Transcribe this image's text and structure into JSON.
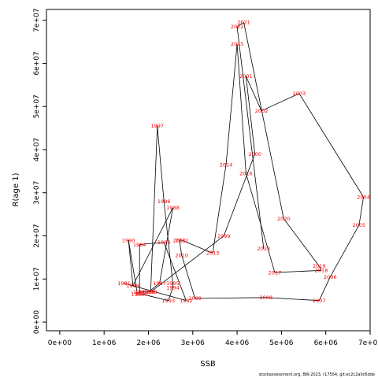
{
  "chart_data": {
    "type": "line",
    "xlabel": "SSB",
    "ylabel": "R(age 1)",
    "xlim": [
      -300000,
      7000000
    ],
    "ylim": [
      -2000000,
      72500000
    ],
    "x_ticks": [
      0,
      1000000,
      2000000,
      3000000,
      4000000,
      5000000,
      6000000,
      7000000
    ],
    "x_tick_labels": [
      "0e+00",
      "1e+06",
      "2e+06",
      "3e+06",
      "4e+06",
      "5e+06",
      "6e+06",
      "7e+06"
    ],
    "y_ticks": [
      0,
      10000000,
      20000000,
      30000000,
      40000000,
      50000000,
      60000000,
      70000000
    ],
    "y_tick_labels": [
      "0e+00",
      "1e+07",
      "2e+07",
      "3e+07",
      "4e+07",
      "5e+07",
      "6e+07",
      "7e+07"
    ],
    "colors": {
      "line": "#000000",
      "labels": "#ff0000"
    },
    "points": [
      {
        "year": "1981",
        "ssb": 1450000,
        "rec": 9000000
      },
      {
        "year": "1982",
        "ssb": 2850000,
        "rec": 5000000
      },
      {
        "year": "1983",
        "ssb": 2350000,
        "rec": 18500000
      },
      {
        "year": "1984",
        "ssb": 1800000,
        "rec": 18000000
      },
      {
        "year": "1985",
        "ssb": 1800000,
        "rec": 7000000
      },
      {
        "year": "1986",
        "ssb": 2000000,
        "rec": 7000000
      },
      {
        "year": "1987",
        "ssb": 2250000,
        "rec": 9000000
      },
      {
        "year": "1988",
        "ssb": 2550000,
        "rec": 26500000
      },
      {
        "year": "1989",
        "ssb": 1650000,
        "rec": 8500000
      },
      {
        "year": "1990",
        "ssb": 1550000,
        "rec": 19000000
      },
      {
        "year": "1991",
        "ssb": 1750000,
        "rec": 6500000
      },
      {
        "year": "1992",
        "ssb": 1850000,
        "rec": 6500000
      },
      {
        "year": "1993",
        "ssb": 2450000,
        "rec": 5000000
      },
      {
        "year": "1994",
        "ssb": 2550000,
        "rec": 8000000
      },
      {
        "year": "1995",
        "ssb": 2550000,
        "rec": 9000000
      },
      {
        "year": "1996",
        "ssb": 2350000,
        "rec": 28000000
      },
      {
        "year": "1997",
        "ssb": 2200000,
        "rec": 45500000
      },
      {
        "year": "1998",
        "ssb": 2050000,
        "rec": 7000000
      },
      {
        "year": "1999",
        "ssb": 3700000,
        "rec": 20000000
      },
      {
        "year": "2000",
        "ssb": 4400000,
        "rec": 39000000
      },
      {
        "year": "2001",
        "ssb": 4200000,
        "rec": 57000000
      },
      {
        "year": "2002",
        "ssb": 4550000,
        "rec": 49000000
      },
      {
        "year": "2003",
        "ssb": 5400000,
        "rec": 53000000
      },
      {
        "year": "2004",
        "ssb": 6850000,
        "rec": 29000000
      },
      {
        "year": "2005",
        "ssb": 6750000,
        "rec": 22500000
      },
      {
        "year": "2006",
        "ssb": 6100000,
        "rec": 10500000
      },
      {
        "year": "2007",
        "ssb": 5850000,
        "rec": 5000000
      },
      {
        "year": "2008",
        "ssb": 4650000,
        "rec": 5700000
      },
      {
        "year": "2009",
        "ssb": 3050000,
        "rec": 5500000
      },
      {
        "year": "2010",
        "ssb": 2750000,
        "rec": 15500000
      },
      {
        "year": "2011",
        "ssb": 2700000,
        "rec": 19000000
      },
      {
        "year": "2012",
        "ssb": 2750000,
        "rec": 19000000
      },
      {
        "year": "2013",
        "ssb": 3450000,
        "rec": 16000000
      },
      {
        "year": "2014",
        "ssb": 3750000,
        "rec": 36500000
      },
      {
        "year": "2015",
        "ssb": 4000000,
        "rec": 64500000
      },
      {
        "year": "2016",
        "ssb": 4200000,
        "rec": 34500000
      },
      {
        "year": "2017",
        "ssb": 4850000,
        "rec": 11500000
      },
      {
        "year": "2018",
        "ssb": 5900000,
        "rec": 12000000
      },
      {
        "year": "2019",
        "ssb": 5850000,
        "rec": 13000000
      },
      {
        "year": "2020",
        "ssb": 5050000,
        "rec": 24000000
      },
      {
        "year": "2021",
        "ssb": 4150000,
        "rec": 69500000
      },
      {
        "year": "2022",
        "ssb": 4000000,
        "rec": 68500000
      },
      {
        "year": "2023",
        "ssb": 4600000,
        "rec": 17000000
      }
    ]
  },
  "footer": "stockassessment.org, BW-2023, r17554, git:ec2c2a0c6dde"
}
